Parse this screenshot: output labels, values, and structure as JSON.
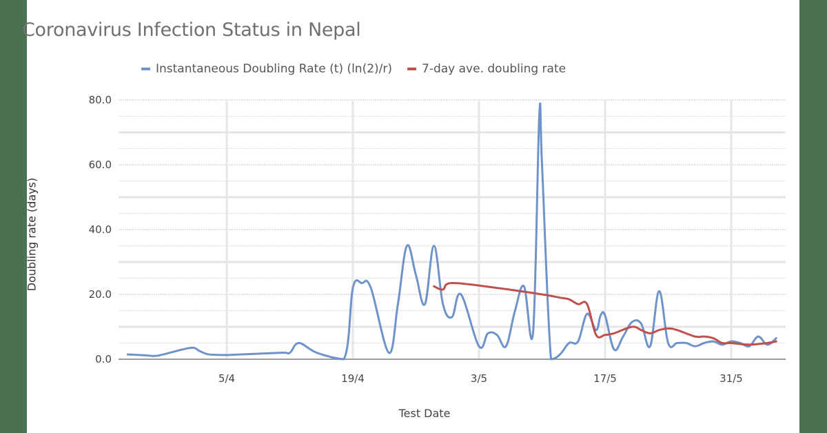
{
  "chart_data": {
    "type": "line",
    "title": "Coronavirus Infection Status in Nepal",
    "xlabel": "Test Date",
    "ylabel": "Doubling rate (days)",
    "ylim": [
      0,
      80
    ],
    "y_ticks": [
      "0.0",
      "20.0",
      "40.0",
      "60.0",
      "80.0"
    ],
    "x_ticks": [
      "5/4",
      "19/4",
      "3/5",
      "17/5",
      "31/5"
    ],
    "grid": true,
    "legend_position": "top",
    "colors": {
      "instantaneous": "#6e93c8",
      "seven_day": "#c0504d"
    },
    "series": [
      {
        "name": "Instantaneous Doubling Rate (t) (ln(2)/r)",
        "x_day_offset_from_5_4": [
          -11,
          -9,
          -8,
          -7,
          -4,
          -3,
          -2,
          0,
          1,
          6,
          7,
          8,
          10,
          13,
          14,
          15,
          16,
          18,
          19,
          20,
          21,
          22,
          23,
          24,
          25,
          26,
          28,
          29,
          30,
          31,
          32,
          33,
          34,
          34.7,
          35,
          36,
          37,
          38,
          39,
          40,
          41,
          41.5,
          42,
          43,
          44,
          45,
          46,
          47,
          48,
          49,
          50,
          51,
          52,
          53,
          54,
          55,
          56,
          57,
          58,
          59,
          60,
          61
        ],
        "values": [
          1.5,
          1.2,
          1.0,
          1.5,
          3.5,
          2.5,
          1.5,
          1.3,
          1.4,
          2.0,
          2.0,
          5.0,
          2.0,
          0.0,
          22.0,
          23.5,
          22.0,
          2.0,
          17.0,
          35.0,
          26.0,
          17.0,
          35.0,
          17.0,
          13.0,
          20.0,
          4.0,
          8.0,
          7.5,
          4.0,
          15.0,
          22.5,
          8.0,
          75.5,
          60.0,
          0.0,
          1.5,
          5.0,
          5.5,
          14.0,
          9.0,
          13.5,
          13.5,
          3.0,
          7.0,
          11.5,
          11.0,
          4.0,
          21.0,
          5.0,
          5.0,
          5.0,
          4.0,
          5.0,
          5.5,
          4.5,
          5.5,
          5.0,
          4.0,
          7.0,
          4.5,
          6.5
        ],
        "note": "values estimated from gridlines; peak ~75.5 around 10/5, cluster of peaks ~35 around 25/4–27/4"
      },
      {
        "name": "7-day ave. doubling rate",
        "x_day_offset_from_5_4": [
          23,
          24,
          25,
          30,
          35,
          37,
          38,
          39,
          40,
          41,
          42,
          43,
          45,
          46,
          47,
          48,
          49,
          50,
          52,
          53,
          54,
          55,
          56,
          58,
          60,
          61
        ],
        "values": [
          22.5,
          21.5,
          23.5,
          22.0,
          20.0,
          19.0,
          18.5,
          17.0,
          17.0,
          7.5,
          7.5,
          8.0,
          10.0,
          9.0,
          8.0,
          9.0,
          9.5,
          9.0,
          7.0,
          7.0,
          6.5,
          5.0,
          5.0,
          4.5,
          5.0,
          5.5
        ],
        "note": "starts around 28/4; declines from ~23 to ~5.5"
      }
    ]
  },
  "legend": {
    "items": [
      {
        "label": "Instantaneous Doubling Rate (t) (ln(2)/r)",
        "color": "#6e93c8"
      },
      {
        "label": "7-day ave. doubling rate",
        "color": "#c0504d"
      }
    ]
  },
  "frame": {
    "background": "#4a7150",
    "card": "#ffffff"
  }
}
